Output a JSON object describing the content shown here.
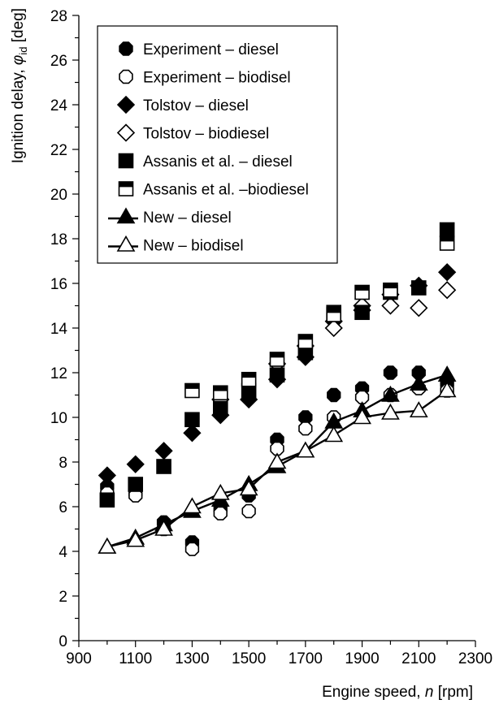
{
  "chart_data": {
    "type": "scatter",
    "xlabel_prefix": "Engine  speed, ",
    "xlabel_symbol": "n",
    "xlabel_unit": " [rpm]",
    "ylabel_prefix": "Ignition delay, ",
    "ylabel_symbol": "φ",
    "ylabel_sub": "id",
    "ylabel_unit": " [deg]",
    "xlim": [
      900,
      2300
    ],
    "ylim": [
      0,
      28
    ],
    "x_ticks": [
      "900",
      "1100",
      "1300",
      "1500",
      "1700",
      "1900",
      "2100",
      "2300"
    ],
    "y_ticks": [
      "0",
      "2",
      "4",
      "6",
      "8",
      "10",
      "12",
      "14",
      "16",
      "18",
      "20",
      "22",
      "24",
      "26",
      "28"
    ],
    "legend_position": "top-left",
    "series": [
      {
        "name": "Experiment – diesel",
        "marker": "octagon",
        "filled": true,
        "line": false,
        "x": [
          1000,
          1000,
          1100,
          1200,
          1300,
          1300,
          1400,
          1400,
          1500,
          1500,
          1600,
          1600,
          1700,
          1700,
          1800,
          1900,
          2000,
          2100,
          2200
        ],
        "y": [
          6.3,
          6.9,
          6.6,
          5.3,
          4.4,
          9.9,
          5.9,
          10.3,
          6.5,
          11.0,
          9.0,
          11.8,
          10.0,
          12.8,
          11.0,
          11.3,
          12.0,
          12.0,
          11.5
        ]
      },
      {
        "name": "Experiment – biodisel",
        "marker": "octagon",
        "filled": false,
        "line": false,
        "x": [
          1000,
          1100,
          1200,
          1300,
          1400,
          1500,
          1600,
          1700,
          1800,
          1900,
          2000,
          2100,
          2200
        ],
        "y": [
          6.6,
          6.5,
          5.0,
          4.1,
          5.7,
          5.8,
          8.6,
          9.5,
          10.0,
          10.9,
          11.0,
          11.3,
          11.2
        ]
      },
      {
        "name": "Tolstov – diesel",
        "marker": "diamond",
        "filled": true,
        "line": false,
        "x": [
          1000,
          1100,
          1200,
          1300,
          1400,
          1500,
          1600,
          1700,
          1800,
          1900,
          2000,
          2100,
          2200
        ],
        "y": [
          7.4,
          7.9,
          8.5,
          9.3,
          10.1,
          10.8,
          11.7,
          12.7,
          14.3,
          14.8,
          15.5,
          15.9,
          16.5
        ]
      },
      {
        "name": "Tolstov – biodiesel",
        "marker": "diamond",
        "filled": false,
        "line": false,
        "x": [
          1400,
          1600,
          1700,
          1800,
          1900,
          2000,
          2100,
          2200
        ],
        "y": [
          10.8,
          12.4,
          13.2,
          14.0,
          15.0,
          15.0,
          14.9,
          15.7
        ]
      },
      {
        "name": "Assanis et al. – diesel",
        "marker": "square",
        "filled": true,
        "line": false,
        "x": [
          1000,
          1100,
          1200,
          1300,
          1400,
          1500,
          1600,
          1700,
          1800,
          1900,
          2000,
          2100,
          2200
        ],
        "y": [
          6.3,
          7.0,
          7.8,
          9.9,
          10.4,
          11.2,
          11.9,
          12.9,
          14.7,
          14.7,
          15.6,
          15.8,
          18.4
        ]
      },
      {
        "name": "Assanis et al. –biodiesel",
        "marker": "half-square",
        "filled": false,
        "line": false,
        "x": [
          1300,
          1400,
          1500,
          1600,
          1700,
          1800,
          1900,
          2000,
          2200
        ],
        "y": [
          11.2,
          11.1,
          11.7,
          12.6,
          13.4,
          14.6,
          15.6,
          15.7,
          17.8
        ]
      },
      {
        "name": "New – diesel",
        "marker": "triangle",
        "filled": true,
        "line": true,
        "x": [
          1000,
          1100,
          1200,
          1300,
          1400,
          1500,
          1600,
          1700,
          1800,
          1900,
          2000,
          2100,
          2200
        ],
        "y": [
          4.2,
          4.6,
          5.2,
          5.8,
          6.3,
          7.0,
          7.8,
          8.5,
          9.8,
          10.3,
          11.0,
          11.5,
          11.9
        ]
      },
      {
        "name": "New – biodisel",
        "marker": "triangle",
        "filled": false,
        "line": true,
        "x": [
          1000,
          1100,
          1200,
          1300,
          1400,
          1500,
          1600,
          1700,
          1800,
          1900,
          2000,
          2100,
          2200
        ],
        "y": [
          4.2,
          4.5,
          5.0,
          6.0,
          6.6,
          6.8,
          8.0,
          8.5,
          9.2,
          10.0,
          10.2,
          10.3,
          11.2
        ]
      }
    ]
  }
}
